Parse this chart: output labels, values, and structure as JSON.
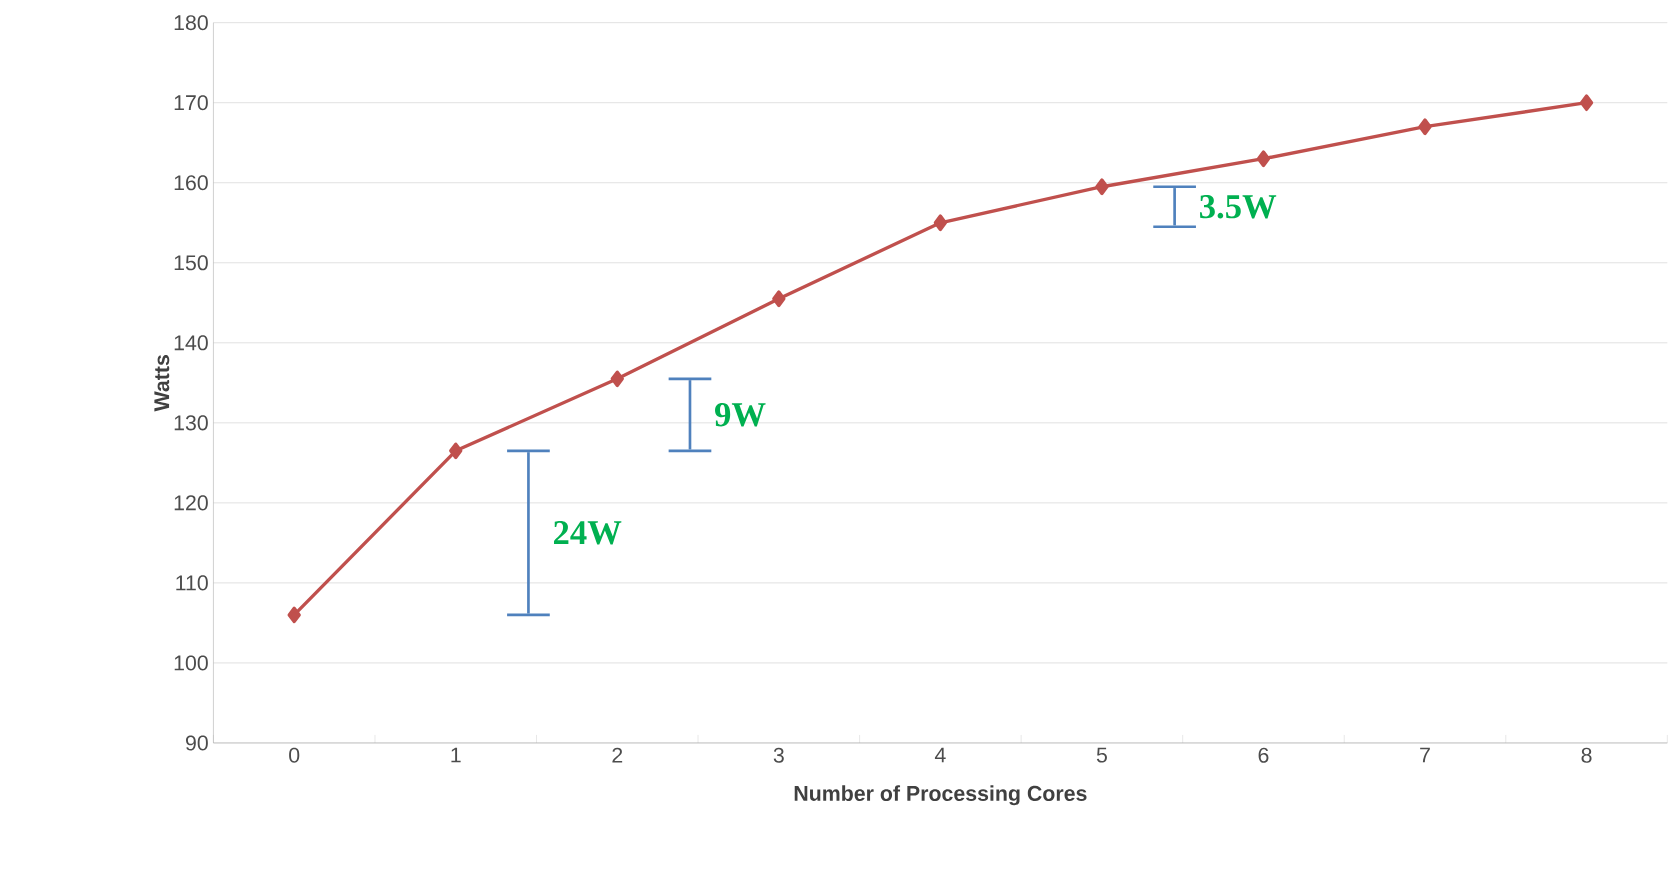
{
  "chart_data": {
    "type": "line",
    "xlabel": "Number of Processing Cores",
    "ylabel": "Watts",
    "categories": [
      "0",
      "1",
      "2",
      "3",
      "4",
      "5",
      "6",
      "7",
      "8"
    ],
    "series": [
      {
        "color": "#c0504d",
        "values": [
          106,
          126.5,
          135.5,
          145.5,
          155,
          159.5,
          163,
          167,
          170
        ]
      }
    ],
    "ylim": [
      90,
      180
    ],
    "yticks": [
      90,
      100,
      110,
      120,
      130,
      140,
      150,
      160,
      170,
      180
    ],
    "grid": "y",
    "marker": "diamond",
    "line_style": "solid",
    "annotations": [
      "24W",
      "9W",
      "3.5W"
    ]
  }
}
